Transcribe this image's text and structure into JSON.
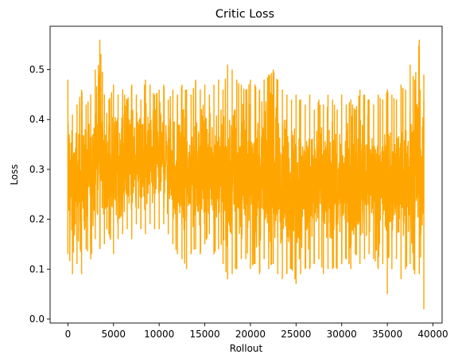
{
  "chart_data": {
    "type": "line",
    "title": "Critic Loss",
    "xlabel": "Rollout",
    "ylabel": "Loss",
    "xlim": [
      -1950,
      41000
    ],
    "ylim": [
      -0.008,
      0.587
    ],
    "xticks": [
      0,
      5000,
      10000,
      15000,
      20000,
      25000,
      30000,
      35000,
      40000
    ],
    "yticks": [
      0.0,
      0.1,
      0.2,
      0.3,
      0.4,
      0.5
    ],
    "xtick_labels": [
      "0",
      "5000",
      "10000",
      "15000",
      "20000",
      "25000",
      "30000",
      "35000",
      "40000"
    ],
    "ytick_labels": [
      "0.0",
      "0.1",
      "0.2",
      "0.3",
      "0.4",
      "0.5"
    ],
    "grid": false,
    "legend": null,
    "series": [
      {
        "color": "#ffa500",
        "x": [
          0,
          500,
          1000,
          1500,
          2000,
          2500,
          3000,
          3500,
          4000,
          4500,
          5000,
          5500,
          6000,
          6500,
          7000,
          7500,
          8000,
          8500,
          9000,
          9500,
          10000,
          10500,
          11000,
          11500,
          12000,
          12500,
          13000,
          13500,
          14000,
          14500,
          15000,
          15500,
          16000,
          16500,
          17000,
          17500,
          18000,
          18500,
          19000,
          19500,
          20000,
          20500,
          21000,
          21500,
          22000,
          22500,
          23000,
          23500,
          24000,
          24500,
          25000,
          25500,
          26000,
          26500,
          27000,
          27500,
          28000,
          28500,
          29000,
          29500,
          30000,
          30500,
          31000,
          31500,
          32000,
          32500,
          33000,
          33500,
          34000,
          34500,
          35000,
          35500,
          36000,
          36500,
          37000,
          37500,
          38000,
          38500,
          39000
        ],
        "y_max": [
          0.48,
          0.41,
          0.43,
          0.46,
          0.43,
          0.45,
          0.5,
          0.56,
          0.45,
          0.44,
          0.47,
          0.45,
          0.46,
          0.44,
          0.47,
          0.45,
          0.44,
          0.48,
          0.47,
          0.45,
          0.46,
          0.47,
          0.44,
          0.46,
          0.45,
          0.47,
          0.46,
          0.45,
          0.48,
          0.46,
          0.47,
          0.45,
          0.47,
          0.48,
          0.46,
          0.51,
          0.5,
          0.48,
          0.47,
          0.46,
          0.48,
          0.47,
          0.46,
          0.48,
          0.49,
          0.5,
          0.48,
          0.46,
          0.45,
          0.44,
          0.45,
          0.44,
          0.43,
          0.45,
          0.42,
          0.44,
          0.43,
          0.45,
          0.44,
          0.42,
          0.45,
          0.43,
          0.44,
          0.42,
          0.46,
          0.45,
          0.44,
          0.43,
          0.45,
          0.44,
          0.46,
          0.45,
          0.44,
          0.47,
          0.46,
          0.51,
          0.48,
          0.56,
          0.49
        ],
        "y_min": [
          0.13,
          0.09,
          0.11,
          0.09,
          0.14,
          0.12,
          0.16,
          0.14,
          0.15,
          0.17,
          0.13,
          0.16,
          0.17,
          0.18,
          0.16,
          0.19,
          0.18,
          0.17,
          0.19,
          0.18,
          0.18,
          0.19,
          0.17,
          0.15,
          0.13,
          0.12,
          0.1,
          0.13,
          0.14,
          0.13,
          0.15,
          0.17,
          0.13,
          0.14,
          0.11,
          0.08,
          0.09,
          0.1,
          0.12,
          0.12,
          0.1,
          0.11,
          0.09,
          0.12,
          0.1,
          0.11,
          0.09,
          0.08,
          0.09,
          0.1,
          0.07,
          0.09,
          0.1,
          0.1,
          0.11,
          0.12,
          0.09,
          0.1,
          0.1,
          0.1,
          0.11,
          0.12,
          0.1,
          0.13,
          0.11,
          0.12,
          0.13,
          0.12,
          0.1,
          0.11,
          0.05,
          0.1,
          0.12,
          0.08,
          0.1,
          0.11,
          0.09,
          0.09,
          0.02
        ]
      }
    ]
  }
}
